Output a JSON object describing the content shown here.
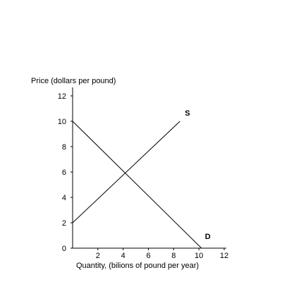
{
  "chart_data": {
    "type": "line",
    "title": "",
    "ylabel": "Price (dollars per pound)",
    "xlabel": "Quantity, (bilions of pound per year)",
    "xlim": [
      0,
      12
    ],
    "ylim": [
      0,
      12
    ],
    "xticks": [
      2,
      4,
      6,
      8,
      10,
      12
    ],
    "yticks": [
      0,
      2,
      4,
      6,
      8,
      10,
      12
    ],
    "grid": false,
    "legend": "none",
    "series": [
      {
        "name": "S",
        "points": [
          [
            0,
            2
          ],
          [
            8.5,
            10
          ]
        ],
        "color": "#000000"
      },
      {
        "name": "D",
        "points": [
          [
            0,
            10
          ],
          [
            10.2,
            0
          ]
        ],
        "color": "#000000"
      }
    ]
  }
}
